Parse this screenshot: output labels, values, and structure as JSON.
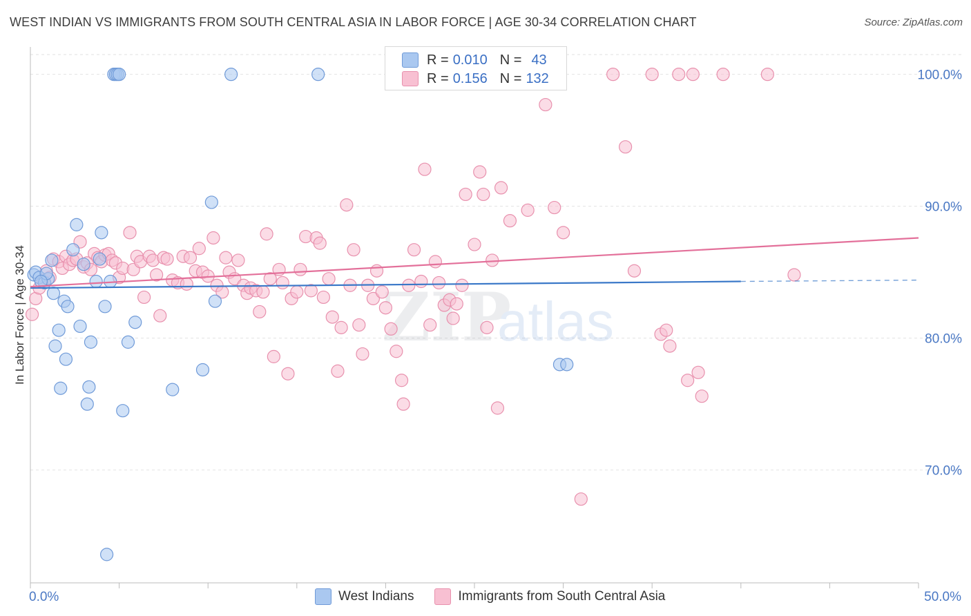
{
  "title": "WEST INDIAN VS IMMIGRANTS FROM SOUTH CENTRAL ASIA IN LABOR FORCE | AGE 30-34 CORRELATION CHART",
  "source": "Source: ZipAtlas.com",
  "watermark": {
    "zip": "ZIP",
    "atlas": "atlas"
  },
  "legend": {
    "rows": [
      {
        "r_label": "R = ",
        "r_value": "0.010",
        "n_label": "N = ",
        "n_value": "43",
        "color": "#aac8f0",
        "border": "#6f9ad8"
      },
      {
        "r_label": "R = ",
        "r_value": "0.156",
        "n_label": "N = ",
        "n_value": "132",
        "color": "#f8c0d2",
        "border": "#e890ad"
      }
    ]
  },
  "chart_data": {
    "type": "scatter",
    "title": "WEST INDIAN VS IMMIGRANTS FROM SOUTH CENTRAL ASIA IN LABOR FORCE | AGE 30-34 CORRELATION CHART",
    "xlabel": "",
    "ylabel": "In Labor Force | Age 30-34",
    "xlim": [
      0,
      50
    ],
    "ylim": [
      61.5,
      101.5
    ],
    "x_tick_labels": [
      "0.0%",
      "50.0%"
    ],
    "y_ticks": [
      70,
      80,
      90,
      100
    ],
    "y_tick_labels": [
      "70.0%",
      "80.0%",
      "90.0%",
      "100.0%"
    ],
    "grid": true,
    "legend_position": "top-center",
    "series": [
      {
        "name": "West Indians",
        "color": "#6f9ad8",
        "fill": "#aac8f0",
        "trend": {
          "x": [
            0,
            40
          ],
          "y": [
            83.8,
            84.3
          ],
          "dashed_to": [
            50,
            84.4
          ]
        },
        "points": [
          [
            0.2,
            84.8
          ],
          [
            0.3,
            85.0
          ],
          [
            0.5,
            84.6
          ],
          [
            0.8,
            84.2
          ],
          [
            1.0,
            84.5
          ],
          [
            0.9,
            84.9
          ],
          [
            1.2,
            85.9
          ],
          [
            1.3,
            83.4
          ],
          [
            1.4,
            79.4
          ],
          [
            1.6,
            80.6
          ],
          [
            1.7,
            76.2
          ],
          [
            1.9,
            82.8
          ],
          [
            2.0,
            78.4
          ],
          [
            2.1,
            82.4
          ],
          [
            2.4,
            86.7
          ],
          [
            2.6,
            88.6
          ],
          [
            2.8,
            80.9
          ],
          [
            3.0,
            85.6
          ],
          [
            3.2,
            75.0
          ],
          [
            3.3,
            76.3
          ],
          [
            3.4,
            79.7
          ],
          [
            3.7,
            84.3
          ],
          [
            3.9,
            86.0
          ],
          [
            4.0,
            88.0
          ],
          [
            4.2,
            82.4
          ],
          [
            4.3,
            63.6
          ],
          [
            4.5,
            84.3
          ],
          [
            4.7,
            100.0
          ],
          [
            4.8,
            100.0
          ],
          [
            4.9,
            100.0
          ],
          [
            5.0,
            100.0
          ],
          [
            5.2,
            74.5
          ],
          [
            5.5,
            79.7
          ],
          [
            5.9,
            81.2
          ],
          [
            8.0,
            76.1
          ],
          [
            9.7,
            77.6
          ],
          [
            10.2,
            90.3
          ],
          [
            10.4,
            82.8
          ],
          [
            11.3,
            100.0
          ],
          [
            16.2,
            100.0
          ],
          [
            29.8,
            78.0
          ],
          [
            30.2,
            78.0
          ],
          [
            0.6,
            84.3
          ]
        ]
      },
      {
        "name": "Immigrants from South Central Asia",
        "color": "#e890ad",
        "fill": "#f8c0d2",
        "trend": {
          "x": [
            0,
            50
          ],
          "y": [
            83.9,
            87.6
          ]
        },
        "points": [
          [
            0.1,
            81.8
          ],
          [
            0.3,
            83.0
          ],
          [
            0.5,
            83.8
          ],
          [
            0.7,
            84.4
          ],
          [
            0.9,
            85.1
          ],
          [
            1.1,
            84.6
          ],
          [
            1.3,
            86.0
          ],
          [
            1.6,
            85.8
          ],
          [
            1.8,
            85.3
          ],
          [
            2.0,
            86.2
          ],
          [
            2.2,
            85.6
          ],
          [
            2.4,
            85.9
          ],
          [
            2.6,
            86.0
          ],
          [
            2.8,
            87.3
          ],
          [
            3.0,
            85.4
          ],
          [
            3.2,
            85.7
          ],
          [
            3.4,
            85.2
          ],
          [
            3.6,
            86.4
          ],
          [
            3.8,
            86.1
          ],
          [
            4.0,
            85.8
          ],
          [
            4.2,
            86.3
          ],
          [
            4.4,
            86.4
          ],
          [
            4.6,
            85.9
          ],
          [
            4.8,
            85.7
          ],
          [
            5.0,
            84.6
          ],
          [
            5.2,
            85.3
          ],
          [
            5.6,
            88.0
          ],
          [
            5.8,
            85.2
          ],
          [
            6.0,
            86.2
          ],
          [
            6.2,
            85.8
          ],
          [
            6.4,
            83.1
          ],
          [
            6.7,
            86.2
          ],
          [
            6.9,
            85.9
          ],
          [
            7.1,
            84.8
          ],
          [
            7.3,
            81.7
          ],
          [
            7.5,
            86.1
          ],
          [
            7.7,
            86.0
          ],
          [
            8.0,
            84.4
          ],
          [
            8.3,
            84.2
          ],
          [
            8.6,
            86.2
          ],
          [
            8.8,
            84.1
          ],
          [
            9.0,
            86.1
          ],
          [
            9.3,
            85.1
          ],
          [
            9.5,
            86.8
          ],
          [
            9.7,
            85.0
          ],
          [
            10.0,
            84.7
          ],
          [
            10.3,
            87.6
          ],
          [
            10.5,
            84.0
          ],
          [
            10.8,
            83.5
          ],
          [
            11.0,
            86.1
          ],
          [
            11.2,
            85.0
          ],
          [
            11.5,
            84.5
          ],
          [
            11.7,
            85.9
          ],
          [
            12.0,
            84.0
          ],
          [
            12.2,
            83.4
          ],
          [
            12.4,
            83.8
          ],
          [
            12.7,
            83.6
          ],
          [
            12.9,
            82.0
          ],
          [
            13.1,
            83.5
          ],
          [
            13.3,
            87.9
          ],
          [
            13.5,
            84.5
          ],
          [
            13.7,
            78.6
          ],
          [
            14.0,
            85.2
          ],
          [
            14.2,
            84.2
          ],
          [
            14.5,
            77.3
          ],
          [
            14.7,
            83.0
          ],
          [
            15.0,
            83.5
          ],
          [
            15.2,
            85.2
          ],
          [
            15.5,
            87.7
          ],
          [
            15.8,
            83.6
          ],
          [
            16.1,
            87.6
          ],
          [
            16.3,
            87.2
          ],
          [
            16.5,
            83.1
          ],
          [
            16.8,
            84.5
          ],
          [
            17.0,
            81.6
          ],
          [
            17.3,
            77.5
          ],
          [
            17.5,
            80.8
          ],
          [
            17.8,
            90.1
          ],
          [
            18.0,
            84.0
          ],
          [
            18.2,
            86.7
          ],
          [
            18.5,
            81.0
          ],
          [
            18.7,
            78.8
          ],
          [
            19.0,
            84.0
          ],
          [
            19.3,
            83.0
          ],
          [
            19.5,
            85.1
          ],
          [
            19.8,
            83.5
          ],
          [
            20.0,
            82.3
          ],
          [
            20.3,
            80.7
          ],
          [
            20.6,
            79.0
          ],
          [
            20.9,
            76.8
          ],
          [
            21.0,
            75.0
          ],
          [
            21.3,
            84.0
          ],
          [
            21.6,
            86.7
          ],
          [
            22.0,
            84.3
          ],
          [
            22.2,
            92.8
          ],
          [
            22.5,
            81.0
          ],
          [
            22.8,
            85.8
          ],
          [
            23.0,
            84.2
          ],
          [
            23.3,
            82.5
          ],
          [
            23.6,
            82.9
          ],
          [
            23.8,
            81.5
          ],
          [
            24.0,
            82.6
          ],
          [
            24.3,
            84.0
          ],
          [
            24.5,
            90.9
          ],
          [
            25.0,
            87.1
          ],
          [
            25.3,
            92.6
          ],
          [
            25.5,
            90.9
          ],
          [
            25.7,
            80.8
          ],
          [
            26.0,
            85.9
          ],
          [
            26.3,
            74.7
          ],
          [
            26.5,
            91.4
          ],
          [
            27.0,
            88.9
          ],
          [
            28.0,
            89.7
          ],
          [
            29.0,
            97.7
          ],
          [
            29.5,
            89.9
          ],
          [
            30.0,
            88.0
          ],
          [
            31.0,
            67.8
          ],
          [
            32.8,
            100.0
          ],
          [
            33.5,
            94.5
          ],
          [
            34.0,
            85.1
          ],
          [
            35.0,
            100.0
          ],
          [
            35.5,
            80.3
          ],
          [
            35.8,
            80.6
          ],
          [
            36.0,
            79.4
          ],
          [
            36.5,
            100.0
          ],
          [
            37.0,
            76.8
          ],
          [
            37.3,
            100.0
          ],
          [
            37.6,
            77.4
          ],
          [
            37.8,
            75.6
          ],
          [
            39.0,
            100.0
          ],
          [
            41.5,
            100.0
          ],
          [
            43.0,
            84.8
          ]
        ]
      }
    ]
  }
}
